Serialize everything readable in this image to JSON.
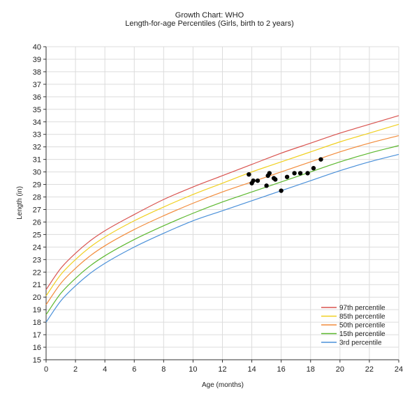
{
  "chart_data": {
    "type": "line",
    "title": "Growth Chart: WHO",
    "subtitle": "Length-for-age Percentiles (Girls, birth to 2 years)",
    "xlabel": "Age (months)",
    "ylabel": "Length (in)",
    "xlim": [
      0,
      24
    ],
    "ylim": [
      15,
      40
    ],
    "x_ticks": [
      0,
      2,
      4,
      6,
      8,
      10,
      12,
      14,
      16,
      18,
      20,
      22,
      24
    ],
    "y_ticks": [
      15,
      16,
      17,
      18,
      19,
      20,
      21,
      22,
      23,
      24,
      25,
      26,
      27,
      28,
      29,
      30,
      31,
      32,
      33,
      34,
      35,
      36,
      37,
      38,
      39,
      40
    ],
    "grid": true,
    "legend_position": "bottom-right",
    "series": [
      {
        "name": "97th percentile",
        "color": "#d9534f",
        "x": [
          0,
          1,
          2,
          3,
          4,
          6,
          8,
          10,
          12,
          14,
          16,
          18,
          20,
          22,
          24
        ],
        "y": [
          20.6,
          22.3,
          23.5,
          24.5,
          25.3,
          26.6,
          27.8,
          28.8,
          29.7,
          30.6,
          31.5,
          32.3,
          33.1,
          33.8,
          34.5
        ]
      },
      {
        "name": "85th percentile",
        "color": "#f0d020",
        "x": [
          0,
          1,
          2,
          3,
          4,
          6,
          8,
          10,
          12,
          14,
          16,
          18,
          20,
          22,
          24
        ],
        "y": [
          20.1,
          21.8,
          23.0,
          24.0,
          24.8,
          26.1,
          27.2,
          28.2,
          29.1,
          30.0,
          30.8,
          31.6,
          32.4,
          33.1,
          33.8
        ]
      },
      {
        "name": "50th percentile",
        "color": "#f28c3c",
        "x": [
          0,
          1,
          2,
          3,
          4,
          6,
          8,
          10,
          12,
          14,
          16,
          18,
          20,
          22,
          24
        ],
        "y": [
          19.4,
          21.1,
          22.3,
          23.3,
          24.1,
          25.4,
          26.5,
          27.5,
          28.4,
          29.2,
          30.0,
          30.8,
          31.6,
          32.3,
          32.9
        ]
      },
      {
        "name": "15th percentile",
        "color": "#5cb82e",
        "x": [
          0,
          1,
          2,
          3,
          4,
          6,
          8,
          10,
          12,
          14,
          16,
          18,
          20,
          22,
          24
        ],
        "y": [
          18.6,
          20.3,
          21.5,
          22.5,
          23.3,
          24.6,
          25.7,
          26.7,
          27.6,
          28.4,
          29.2,
          30.0,
          30.8,
          31.5,
          32.1
        ]
      },
      {
        "name": "3rd percentile",
        "color": "#4a90d9",
        "x": [
          0,
          1,
          2,
          3,
          4,
          6,
          8,
          10,
          12,
          14,
          16,
          18,
          20,
          22,
          24
        ],
        "y": [
          18.0,
          19.7,
          20.9,
          21.9,
          22.7,
          24.0,
          25.1,
          26.1,
          26.9,
          27.7,
          28.5,
          29.3,
          30.1,
          30.8,
          31.4
        ]
      }
    ],
    "points": {
      "color": "#000000",
      "x": [
        13.8,
        14.0,
        14.1,
        14.4,
        15.0,
        15.1,
        15.2,
        15.5,
        15.6,
        16.0,
        16.4,
        16.9,
        17.3,
        17.8,
        18.2,
        18.7
      ],
      "y": [
        29.8,
        29.1,
        29.3,
        29.3,
        28.9,
        29.7,
        29.9,
        29.5,
        29.4,
        28.5,
        29.6,
        29.9,
        29.9,
        29.9,
        30.3,
        31.0
      ]
    }
  }
}
